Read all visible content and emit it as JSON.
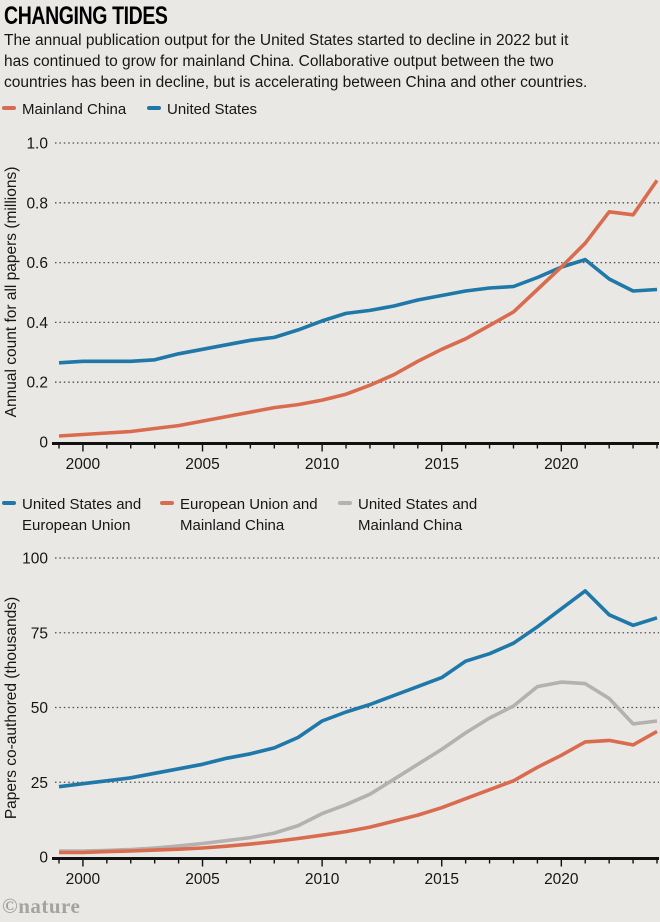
{
  "header": {
    "title": "CHANGING TIDES",
    "subtitle": "The annual publication output for the United States started to decline in 2022 but it\nhas continued to grow for mainland China. Collaborative output between the two\ncountries has been in decline, but is accelerating between China and other countries."
  },
  "colors": {
    "china_orange": "#d96c4f",
    "us_blue": "#1f78a8",
    "collab_gray": "#b3b2b0",
    "background": "#e9e8e5",
    "axis": "#111111",
    "grid_dots": "#4d4d4d"
  },
  "credit": "©nature",
  "chart_data": [
    {
      "type": "line",
      "title": "",
      "xlabel": "",
      "ylabel": "Annual count for all papers (millions)",
      "xlim": [
        1999,
        2024
      ],
      "ylim": [
        0,
        1.0
      ],
      "grid": true,
      "legend_position": "top",
      "xticks": [
        2000,
        2005,
        2010,
        2015,
        2020
      ],
      "yticks": [
        {
          "v": 0,
          "label": "0"
        },
        {
          "v": 0.2,
          "label": "0.2"
        },
        {
          "v": 0.4,
          "label": "0.4"
        },
        {
          "v": 0.6,
          "label": "0.6"
        },
        {
          "v": 0.8,
          "label": "0.8"
        },
        {
          "v": 1.0,
          "label": "1.0"
        }
      ],
      "x": [
        1999,
        2000,
        2001,
        2002,
        2003,
        2004,
        2005,
        2006,
        2007,
        2008,
        2009,
        2010,
        2011,
        2012,
        2013,
        2014,
        2015,
        2016,
        2017,
        2018,
        2019,
        2020,
        2021,
        2022,
        2023,
        2024
      ],
      "series": [
        {
          "name": "Mainland China",
          "color": "#d96c4f",
          "values": [
            0.02,
            0.025,
            0.03,
            0.035,
            0.045,
            0.055,
            0.07,
            0.085,
            0.1,
            0.115,
            0.125,
            0.14,
            0.16,
            0.19,
            0.225,
            0.27,
            0.31,
            0.345,
            0.39,
            0.435,
            0.51,
            0.585,
            0.665,
            0.77,
            0.76,
            0.875
          ]
        },
        {
          "name": "United States",
          "color": "#1f78a8",
          "values": [
            0.265,
            0.27,
            0.27,
            0.27,
            0.275,
            0.295,
            0.31,
            0.325,
            0.34,
            0.35,
            0.375,
            0.405,
            0.43,
            0.44,
            0.455,
            0.475,
            0.49,
            0.505,
            0.515,
            0.52,
            0.55,
            0.585,
            0.61,
            0.545,
            0.505,
            0.51
          ]
        }
      ]
    },
    {
      "type": "line",
      "title": "",
      "xlabel": "",
      "ylabel": "Papers co-authored (thousands)",
      "xlim": [
        1999,
        2024
      ],
      "ylim": [
        0,
        100
      ],
      "grid": true,
      "legend_position": "top",
      "xticks": [
        2000,
        2005,
        2010,
        2015,
        2020
      ],
      "yticks": [
        {
          "v": 0,
          "label": "0"
        },
        {
          "v": 25,
          "label": "25"
        },
        {
          "v": 50,
          "label": "50"
        },
        {
          "v": 75,
          "label": "75"
        },
        {
          "v": 100,
          "label": "100"
        }
      ],
      "x": [
        1999,
        2000,
        2001,
        2002,
        2003,
        2004,
        2005,
        2006,
        2007,
        2008,
        2009,
        2010,
        2011,
        2012,
        2013,
        2014,
        2015,
        2016,
        2017,
        2018,
        2019,
        2020,
        2021,
        2022,
        2023,
        2024
      ],
      "series": [
        {
          "name": "United States and\nEuropean Union",
          "color": "#1f78a8",
          "values": [
            23.5,
            24.5,
            25.5,
            26.5,
            28,
            29.5,
            31,
            33,
            34.5,
            36.5,
            40,
            45.5,
            48.5,
            51,
            54,
            57,
            60,
            65.5,
            68,
            71.5,
            77,
            83,
            89,
            81,
            77.5,
            80
          ]
        },
        {
          "name": "European Union and\nMainland China",
          "color": "#d96c4f",
          "values": [
            1.5,
            1.5,
            1.8,
            2,
            2.3,
            2.6,
            3,
            3.6,
            4.3,
            5.2,
            6.2,
            7.3,
            8.5,
            10,
            12,
            14,
            16.5,
            19.5,
            22.5,
            25.5,
            30,
            34,
            38.5,
            39,
            37.5,
            42
          ]
        },
        {
          "name": "United States and\nMainland China",
          "color": "#b3b2b0",
          "values": [
            2,
            2,
            2.2,
            2.5,
            3,
            3.7,
            4.5,
            5.5,
            6.5,
            8,
            10.5,
            14.5,
            17.5,
            21,
            26,
            31,
            36,
            41.5,
            46.5,
            50.5,
            57,
            58.5,
            58,
            53,
            44.5,
            45.5
          ]
        }
      ]
    }
  ]
}
